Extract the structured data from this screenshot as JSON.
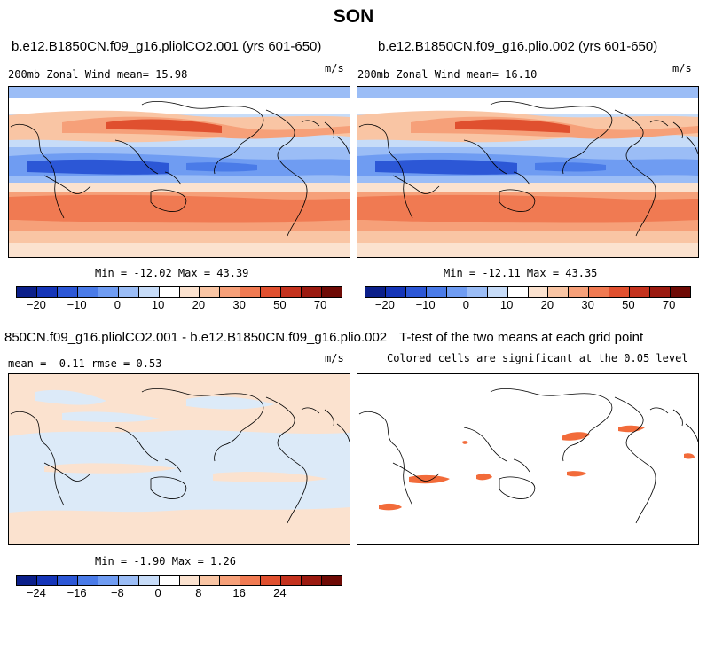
{
  "figure_title": "SON",
  "panels": {
    "p1": {
      "title": "b.e12.B1850CN.f09_g16.pliolCO2.001 (yrs 601-650)",
      "left_label": "200mb Zonal Wind  mean=  15.98",
      "units": "m/s",
      "minmax": "Min = -12.02 Max =  43.39"
    },
    "p2": {
      "title": "b.e12.B1850CN.f09_g16.plio.002 (yrs 601-650)",
      "left_label": "200mb Zonal Wind  mean=  16.10",
      "units": "m/s",
      "minmax": "Min = -12.11 Max =  43.35"
    },
    "p3": {
      "title": "850CN.f09_g16.pliolCO2.001 - b.e12.B1850CN.f09_g16.plio.002",
      "left_label": "mean =  -0.11     rmse =    0.53",
      "units": "m/s",
      "minmax": "Min =  -1.90 Max =   1.26"
    },
    "p4": {
      "title": "T-test of the two means at each grid point",
      "subtitle": "Colored cells are significant at the 0.05 level"
    }
  },
  "colors": {
    "scale": [
      "#0b1f8a",
      "#1535b8",
      "#2c57d6",
      "#4a7be8",
      "#6f9cf2",
      "#9bbdf6",
      "#c7dcf8",
      "#ffffff",
      "#fbe2cf",
      "#f9c5a4",
      "#f6a079",
      "#f07a52",
      "#e0502f",
      "#c4321e",
      "#9b1a10",
      "#6e0a05"
    ],
    "significant": "#f26b3a"
  },
  "chart_data": [
    {
      "type": "heatmap",
      "title": "b.e12.B1850CN.f09_g16.pliolCO2.001 (yrs 601-650)",
      "variable": "200mb Zonal Wind",
      "units": "m/s",
      "mean": 15.98,
      "min": -12.02,
      "max": 43.39,
      "colorbar_ticks": [
        -20,
        -10,
        0,
        10,
        20,
        30,
        50,
        70
      ]
    },
    {
      "type": "heatmap",
      "title": "b.e12.B1850CN.f09_g16.plio.002 (yrs 601-650)",
      "variable": "200mb Zonal Wind",
      "units": "m/s",
      "mean": 16.1,
      "min": -12.11,
      "max": 43.35,
      "colorbar_ticks": [
        -20,
        -10,
        0,
        10,
        20,
        30,
        50,
        70
      ]
    },
    {
      "type": "heatmap",
      "title": "850CN.f09_g16.pliolCO2.001 - b.e12.B1850CN.f09_g16.plio.002",
      "units": "m/s",
      "mean": -0.11,
      "rmse": 0.53,
      "min": -1.9,
      "max": 1.26,
      "colorbar_ticks": [
        -24,
        -16,
        -8,
        0,
        8,
        16,
        24
      ]
    },
    {
      "type": "heatmap",
      "title": "T-test of the two means at each grid point",
      "subtitle": "Colored cells are significant at the 0.05 level"
    }
  ],
  "colorbars": {
    "wind": {
      "ticks": [
        "−20",
        "−10",
        "0",
        "10",
        "20",
        "30",
        "50",
        "70"
      ]
    },
    "diff": {
      "ticks": [
        "−24",
        "−16",
        "−8",
        "0",
        "8",
        "16",
        "24"
      ]
    }
  }
}
